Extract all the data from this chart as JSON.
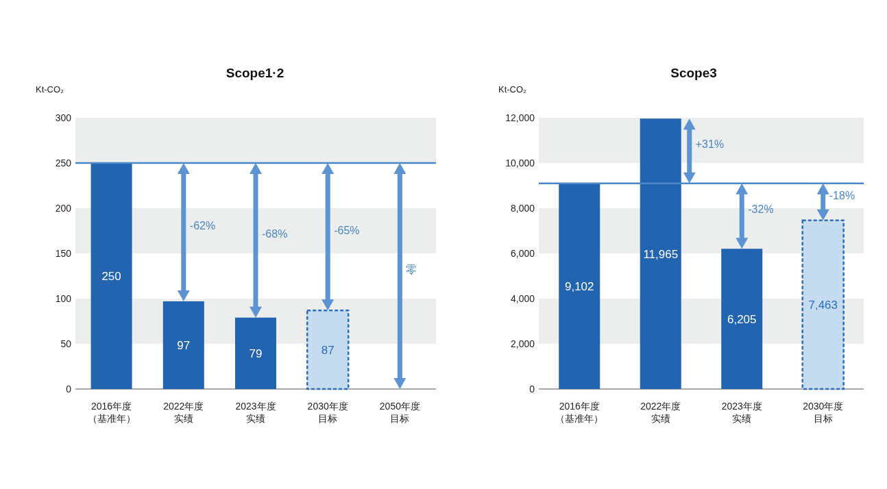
{
  "chart_data": [
    {
      "type": "bar",
      "title": "Scope1·2",
      "ylabel": "Kt-CO₂",
      "categories": [
        "2016年度（基准年）",
        "2022年度实绩",
        "2023年度实绩",
        "2030年度目标",
        "2050年度目标"
      ],
      "series": [
        {
          "color": "#2364b0",
          "values": [
            250,
            97,
            79,
            null,
            null
          ],
          "value_labels": [
            "250",
            "97",
            "79",
            null,
            null
          ]
        },
        {
          "color": "#c5dcf0",
          "line_style": "dashed",
          "values": [
            null,
            null,
            null,
            87,
            0
          ],
          "value_labels": [
            null,
            null,
            null,
            "87",
            null
          ]
        }
      ],
      "ylim": [
        0,
        300
      ],
      "yticks": [
        0,
        50,
        100,
        150,
        200,
        250,
        300
      ],
      "bands": [
        {
          "axis": "y",
          "from": 50,
          "to": 100,
          "color": "#eceeed"
        },
        {
          "axis": "y",
          "from": 150,
          "to": 200,
          "color": "#eceeed"
        },
        {
          "axis": "y",
          "from": 250,
          "to": 300,
          "color": "#eceeed"
        }
      ],
      "ref_lines": [
        {
          "axis": "y",
          "value": 250,
          "color": "#4a86c8"
        }
      ],
      "annotations": [
        "-62%",
        "-68%",
        "-65%",
        "零"
      ],
      "grid": false
    },
    {
      "type": "bar",
      "title": "Scope3",
      "ylabel": "Kt-CO₂",
      "categories": [
        "2016年度（基准年）",
        "2022年度实绩",
        "2023年度实绩",
        "2030年度目标"
      ],
      "series": [
        {
          "color": "#2364b0",
          "values": [
            9102,
            11965,
            6205,
            null
          ],
          "value_labels": [
            "9,102",
            "11,965",
            "6,205",
            null
          ]
        },
        {
          "color": "#c5dcf0",
          "line_style": "dashed",
          "values": [
            null,
            null,
            null,
            7463
          ],
          "value_labels": [
            null,
            null,
            null,
            "7,463"
          ]
        }
      ],
      "ylim": [
        0,
        12000
      ],
      "yticks": [
        0,
        {
          "value": 2000,
          "label": "2,000"
        },
        {
          "value": 4000,
          "label": "4,000"
        },
        {
          "value": 6000,
          "label": "6,000"
        },
        {
          "value": 8000,
          "label": "8,000"
        },
        {
          "value": 10000,
          "label": "10,000"
        },
        {
          "value": 12000,
          "label": "12,000"
        }
      ],
      "bands": [
        {
          "axis": "y",
          "from": 2000,
          "to": 4000,
          "color": "#eceeed"
        },
        {
          "axis": "y",
          "from": 6000,
          "to": 8000,
          "color": "#eceeed"
        },
        {
          "axis": "y",
          "from": 10000,
          "to": 12000,
          "color": "#eceeed"
        }
      ],
      "ref_lines": [
        {
          "axis": "y",
          "value": 9102,
          "color": "#4a86c8"
        }
      ],
      "annotations": [
        "+31%",
        "-32%",
        "-18%"
      ],
      "grid": false
    }
  ]
}
